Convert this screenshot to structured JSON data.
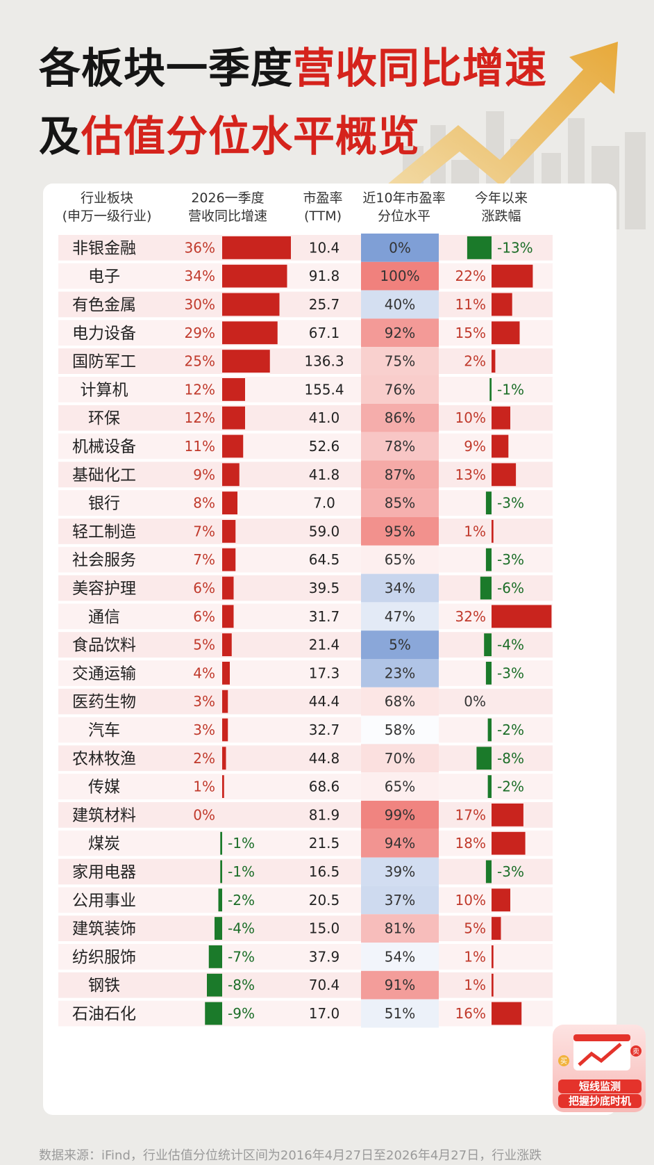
{
  "title": {
    "line1_black": "各板块一季度",
    "line1_red": "营收同比增速",
    "line2_black": "及",
    "line2_red": "估值分位水平概览"
  },
  "headers": {
    "col_industry": [
      "行业板块",
      "(申万一级行业)"
    ],
    "col_growth": [
      "2026一季度",
      "营收同比增速"
    ],
    "col_pe": [
      "市盈率",
      "(TTM)"
    ],
    "col_percentile": [
      "近10年市盈率",
      "分位水平"
    ],
    "col_ytd": [
      "今年以来",
      "涨跌幅"
    ]
  },
  "colors": {
    "positive": "#c9241e",
    "negative": "#1b7a2a",
    "high_percentile": "#f0817d",
    "low_percentile": "#7f9fd6",
    "title_red": "#d5231c"
  },
  "chart_data": {
    "type": "table",
    "columns": [
      "行业板块",
      "2026一季度营收同比增速",
      "市盈率(TTM)",
      "近10年市盈率分位水平",
      "今年以来涨跌幅"
    ],
    "rows": [
      {
        "name": "非银金融",
        "growth": 36,
        "pe": "10.4",
        "pct": 0,
        "ytd": -13
      },
      {
        "name": "电子",
        "growth": 34,
        "pe": "91.8",
        "pct": 100,
        "ytd": 22
      },
      {
        "name": "有色金属",
        "growth": 30,
        "pe": "25.7",
        "pct": 40,
        "ytd": 11
      },
      {
        "name": "电力设备",
        "growth": 29,
        "pe": "67.1",
        "pct": 92,
        "ytd": 15
      },
      {
        "name": "国防军工",
        "growth": 25,
        "pe": "136.3",
        "pct": 75,
        "ytd": 2
      },
      {
        "name": "计算机",
        "growth": 12,
        "pe": "155.4",
        "pct": 76,
        "ytd": -1
      },
      {
        "name": "环保",
        "growth": 12,
        "pe": "41.0",
        "pct": 86,
        "ytd": 10
      },
      {
        "name": "机械设备",
        "growth": 11,
        "pe": "52.6",
        "pct": 78,
        "ytd": 9
      },
      {
        "name": "基础化工",
        "growth": 9,
        "pe": "41.8",
        "pct": 87,
        "ytd": 13
      },
      {
        "name": "银行",
        "growth": 8,
        "pe": "7.0",
        "pct": 85,
        "ytd": -3
      },
      {
        "name": "轻工制造",
        "growth": 7,
        "pe": "59.0",
        "pct": 95,
        "ytd": 1
      },
      {
        "name": "社会服务",
        "growth": 7,
        "pe": "64.5",
        "pct": 65,
        "ytd": -3
      },
      {
        "name": "美容护理",
        "growth": 6,
        "pe": "39.5",
        "pct": 34,
        "ytd": -6
      },
      {
        "name": "通信",
        "growth": 6,
        "pe": "31.7",
        "pct": 47,
        "ytd": 32
      },
      {
        "name": "食品饮料",
        "growth": 5,
        "pe": "21.4",
        "pct": 5,
        "ytd": -4
      },
      {
        "name": "交通运输",
        "growth": 4,
        "pe": "17.3",
        "pct": 23,
        "ytd": -3
      },
      {
        "name": "医药生物",
        "growth": 3,
        "pe": "44.4",
        "pct": 68,
        "ytd": 0
      },
      {
        "name": "汽车",
        "growth": 3,
        "pe": "32.7",
        "pct": 58,
        "ytd": -2
      },
      {
        "name": "农林牧渔",
        "growth": 2,
        "pe": "44.8",
        "pct": 70,
        "ytd": -8
      },
      {
        "name": "传媒",
        "growth": 1,
        "pe": "68.6",
        "pct": 65,
        "ytd": -2
      },
      {
        "name": "建筑材料",
        "growth": 0,
        "pe": "81.9",
        "pct": 99,
        "ytd": 17
      },
      {
        "name": "煤炭",
        "growth": -1,
        "pe": "21.5",
        "pct": 94,
        "ytd": 18
      },
      {
        "name": "家用电器",
        "growth": -1,
        "pe": "16.5",
        "pct": 39,
        "ytd": -3
      },
      {
        "name": "公用事业",
        "growth": -2,
        "pe": "20.5",
        "pct": 37,
        "ytd": 10
      },
      {
        "name": "建筑装饰",
        "growth": -4,
        "pe": "15.0",
        "pct": 81,
        "ytd": 5
      },
      {
        "name": "纺织服饰",
        "growth": -7,
        "pe": "37.9",
        "pct": 54,
        "ytd": 1
      },
      {
        "name": "钢铁",
        "growth": -8,
        "pe": "70.4",
        "pct": 91,
        "ytd": 1
      },
      {
        "name": "石油石化",
        "growth": -9,
        "pe": "17.0",
        "pct": 51,
        "ytd": 16
      }
    ]
  },
  "footer": "数据来源：iFind，行业估值分位统计区间为2016年4月27日至2026年4月27日，行业涨跌",
  "promo": {
    "line1": "短线监测",
    "line2": "把握抄底时机",
    "badge_buy": "买",
    "badge_sell": "卖"
  }
}
